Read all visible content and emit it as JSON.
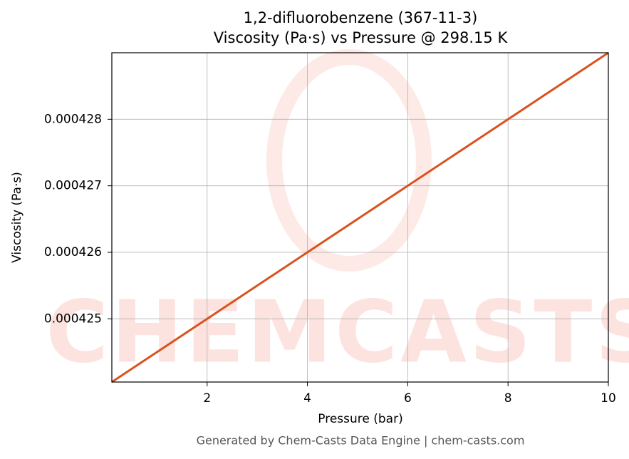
{
  "chart_data": {
    "type": "line",
    "title": "1,2-difluorobenzene (367-11-3)",
    "subtitle": "Viscosity (Pa·s) vs Pressure @ 298.15 K",
    "x_label": "Pressure (bar)",
    "y_label": "Viscosity (Pa·s)",
    "watermark": "CHEMCASTS",
    "footer": "Generated by Chem-Casts Data Engine | chem-casts.com",
    "x": [
      0.1,
      2,
      4,
      6,
      8,
      10
    ],
    "series": [
      {
        "name": "Viscosity",
        "color": "#d9531e",
        "values": [
          0.00042405,
          0.000425,
          0.000426,
          0.000427,
          0.000428,
          0.000429
        ]
      }
    ],
    "xlim": [
      0.1,
      10
    ],
    "xticks": [
      2,
      4,
      6,
      8,
      10
    ],
    "ylim": [
      0.00042405,
      0.000429
    ],
    "yticks": [
      0.000425,
      0.000426,
      0.000427,
      0.000428
    ],
    "grid": true
  }
}
